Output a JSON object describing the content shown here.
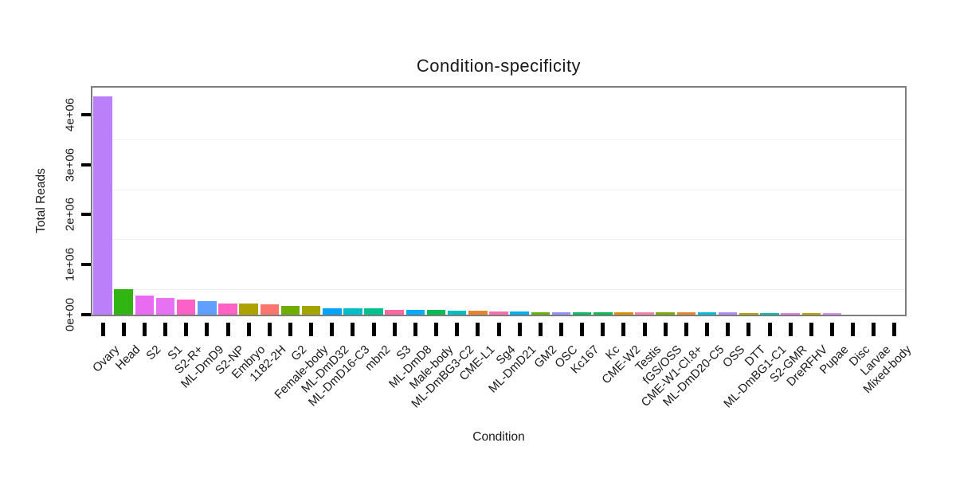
{
  "chart_data": {
    "type": "bar",
    "title": "Condition-specificity",
    "xlabel": "Condition",
    "ylabel": "Total Reads",
    "legend": "none",
    "grid": "minor horizontal gridlines only, very faint",
    "ylim": [
      0,
      4600000
    ],
    "ytick_values": [
      0,
      1000000,
      2000000,
      3000000,
      4000000
    ],
    "ytick_labels": [
      "0e+00",
      "1e+06",
      "2e+06",
      "3e+06",
      "4e+06"
    ],
    "minor_grid_values": [
      500000,
      1500000,
      2500000,
      3500000
    ],
    "colors": {
      "frame": "#7d7d7d",
      "tick": "#000000",
      "minor_grid": "#f2f2f2",
      "text": "#1a1a1a",
      "background": "#ffffff"
    },
    "bars": [
      {
        "label": "Ovary",
        "value": 4350000,
        "color": "#BB7FFA"
      },
      {
        "label": "Head",
        "value": 500000,
        "color": "#30B513"
      },
      {
        "label": "S2",
        "value": 360000,
        "color": "#E96BF2"
      },
      {
        "label": "S1",
        "value": 315000,
        "color": "#E771F3"
      },
      {
        "label": "S2-R+",
        "value": 285000,
        "color": "#FB61C7"
      },
      {
        "label": "ML-DmD9",
        "value": 260000,
        "color": "#609FFD"
      },
      {
        "label": "S2-NP",
        "value": 210000,
        "color": "#FF62C4"
      },
      {
        "label": "Embryo",
        "value": 205000,
        "color": "#ACA200"
      },
      {
        "label": "1182-2H",
        "value": 190000,
        "color": "#F8766D"
      },
      {
        "label": "G2",
        "value": 165000,
        "color": "#6FAD00"
      },
      {
        "label": "Female-body",
        "value": 155000,
        "color": "#A2A500"
      },
      {
        "label": "ML-DmD32",
        "value": 115000,
        "color": "#00A3FB"
      },
      {
        "label": "ML-DmD16-C3",
        "value": 110000,
        "color": "#00BEC8"
      },
      {
        "label": "mbn2",
        "value": 105000,
        "color": "#00C08D"
      },
      {
        "label": "S3",
        "value": 85000,
        "color": "#FF68A0"
      },
      {
        "label": "ML-DmD8",
        "value": 76000,
        "color": "#00ABFB"
      },
      {
        "label": "Male-body",
        "value": 72000,
        "color": "#00BC57"
      },
      {
        "label": "ML-DmBG3-C2",
        "value": 68000,
        "color": "#00BFC4"
      },
      {
        "label": "CME-L1",
        "value": 56000,
        "color": "#E9842E"
      },
      {
        "label": "Sg4",
        "value": 52000,
        "color": "#FA70AF"
      },
      {
        "label": "ML-DmD21",
        "value": 42000,
        "color": "#00ADEF"
      },
      {
        "label": "GM2",
        "value": 40000,
        "color": "#64B200"
      },
      {
        "label": "OSC",
        "value": 38000,
        "color": "#9590FF"
      },
      {
        "label": "Kc167",
        "value": 36000,
        "color": "#00BD66"
      },
      {
        "label": "Kc",
        "value": 34000,
        "color": "#00BB4E"
      },
      {
        "label": "CME-W2",
        "value": 33000,
        "color": "#DB9100"
      },
      {
        "label": "Testis",
        "value": 30000,
        "color": "#F880AB"
      },
      {
        "label": "fGS/OSS",
        "value": 28000,
        "color": "#7AAB00"
      },
      {
        "label": "CME-W1-Cl.8+",
        "value": 27000,
        "color": "#E08A2D"
      },
      {
        "label": "ML-DmD20-C5",
        "value": 26000,
        "color": "#00BBDA"
      },
      {
        "label": "OSS",
        "value": 25000,
        "color": "#AE8DF7"
      },
      {
        "label": "DTT",
        "value": 18000,
        "color": "#B9A100"
      },
      {
        "label": "ML-DmBG1-C1",
        "value": 17000,
        "color": "#00BFB2"
      },
      {
        "label": "S2-GMR",
        "value": 16000,
        "color": "#E47DE6"
      },
      {
        "label": "DreRFHV",
        "value": 15000,
        "color": "#BFA100"
      },
      {
        "label": "Pupae",
        "value": 12000,
        "color": "#DC8DF2"
      },
      {
        "label": "Disc",
        "value": 3000,
        "color": null
      },
      {
        "label": "Larvae",
        "value": 2000,
        "color": null
      },
      {
        "label": "Mixed-body",
        "value": 1000,
        "color": null
      }
    ]
  }
}
